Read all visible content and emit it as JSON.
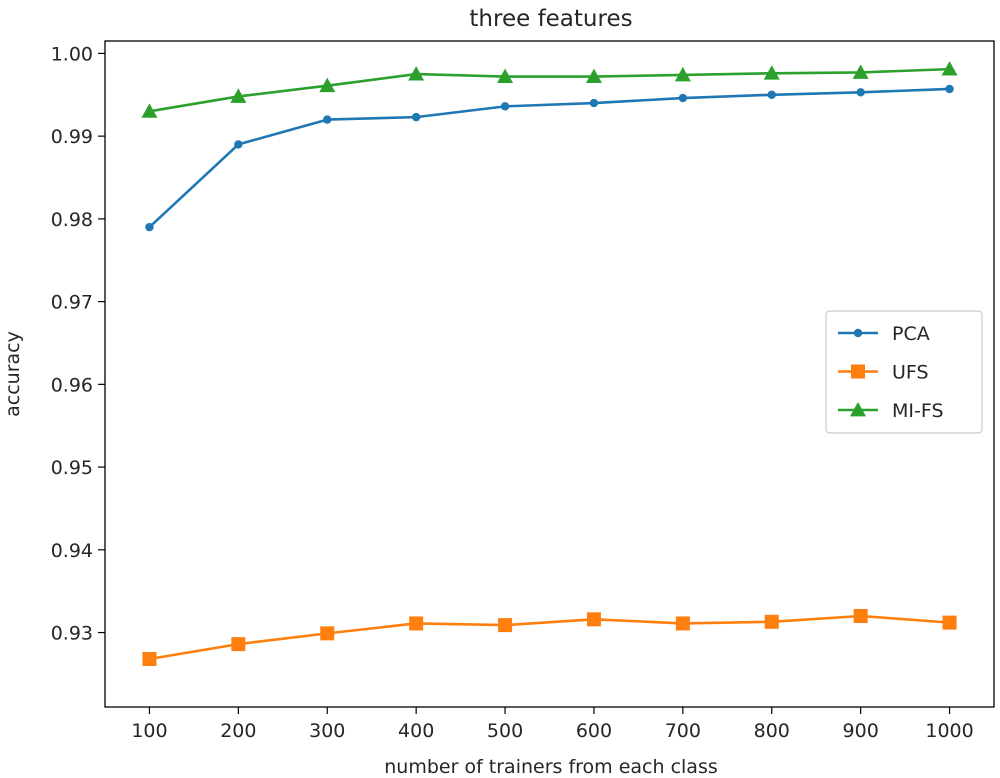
{
  "chart_data": {
    "type": "line",
    "title": "three features",
    "xlabel": "number of trainers from each class",
    "ylabel": "accuracy",
    "x": [
      100,
      200,
      300,
      400,
      500,
      600,
      700,
      800,
      900,
      1000
    ],
    "xlim": [
      50,
      1050
    ],
    "ylim": [
      0.921,
      1.0015
    ],
    "xticks": [
      "100",
      "200",
      "300",
      "400",
      "500",
      "600",
      "700",
      "800",
      "900",
      "1000"
    ],
    "yticks": [
      "0.93",
      "0.94",
      "0.95",
      "0.96",
      "0.97",
      "0.98",
      "0.99",
      "1.00"
    ],
    "grid": false,
    "legend_position": "center-right",
    "series": [
      {
        "name": "PCA",
        "color": "#1f77b4",
        "marker": "circle",
        "values": [
          0.979,
          0.989,
          0.992,
          0.9923,
          0.9936,
          0.994,
          0.9946,
          0.995,
          0.9953,
          0.9957
        ]
      },
      {
        "name": "UFS",
        "color": "#ff7f0e",
        "marker": "square",
        "values": [
          0.9268,
          0.9286,
          0.9299,
          0.9311,
          0.9309,
          0.9316,
          0.9311,
          0.9313,
          0.932,
          0.9312
        ]
      },
      {
        "name": "MI-FS",
        "color": "#2ca02c",
        "marker": "triangle",
        "values": [
          0.993,
          0.9948,
          0.9961,
          0.9975,
          0.9972,
          0.9972,
          0.9974,
          0.9976,
          0.9977,
          0.9981
        ]
      }
    ]
  }
}
